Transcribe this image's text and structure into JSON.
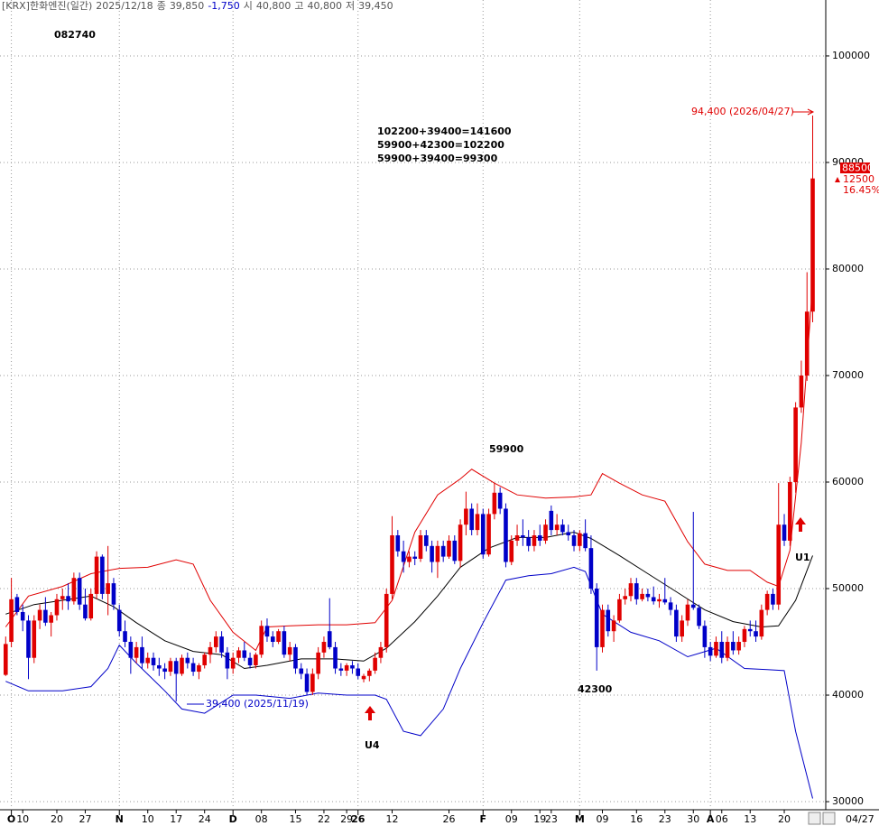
{
  "chart_data": {
    "type": "candlestick",
    "header": {
      "title": "[KRX]한화엔진(일간)",
      "date": "2025/12/18",
      "close_label": "종",
      "close": "39,850",
      "change": "-1,750",
      "open_label": "시",
      "open": "40,800",
      "high_label": "고",
      "high": "40,800",
      "low_label": "저",
      "low": "39,450"
    },
    "code": "082740",
    "notes": [
      "102200+39400=141600",
      "59900+42300=102200",
      "59900+39400=99300"
    ],
    "peak_label": "59900",
    "trough_label": "42300",
    "signals": [
      "U4",
      "U1"
    ],
    "high_label": "94,400 (2026/04/27)",
    "low_label": "39,400 (2025/11/19)",
    "last_price": "88500",
    "change": "12500",
    "change_pct": "16.45%",
    "last_date": "04/27",
    "up_color": "#e00000",
    "down_color": "#0000c8",
    "open": [
      41900,
      45000,
      49200,
      47800,
      47000,
      43500,
      47000,
      48000,
      46800,
      47500,
      49000,
      49300,
      48800,
      51000,
      48500,
      47200,
      49500,
      53000,
      49500,
      50500,
      48000,
      46000,
      45000,
      43500,
      44500,
      43000,
      43500,
      42800,
      42500,
      42200,
      43200,
      42000,
      43500,
      43000,
      42200,
      42800,
      43800,
      44500,
      45500,
      44000,
      42500,
      43500,
      44200,
      43500,
      42800,
      43800,
      46500,
      45500,
      45000,
      46000,
      43800,
      44500,
      42500,
      42000,
      40300,
      42000,
      44000,
      46000,
      44500,
      42500,
      42300,
      42800,
      42500,
      41500,
      41800,
      42300,
      43500,
      44500,
      49500,
      55000,
      53500,
      52500,
      53000,
      52800,
      55000,
      54000,
      52500,
      54000,
      53000,
      54500,
      52600,
      56000,
      57500,
      55500,
      57000,
      53200,
      57000,
      59000,
      57500,
      52500,
      54500,
      55000,
      54800,
      54000,
      55000,
      54500,
      57300,
      55500,
      56000,
      55300,
      55000,
      54000,
      55200,
      53800,
      50000,
      44500,
      48000,
      46000,
      47000,
      49000,
      49300,
      50500,
      49000,
      49500,
      49200,
      48800,
      49000,
      48700,
      48000,
      45500,
      47000,
      48500,
      48200,
      46500,
      44500,
      43700,
      45000,
      43500,
      45000,
      44200,
      45000,
      46200,
      46000,
      45500,
      48000,
      49500,
      48500,
      56000,
      54500,
      60000,
      67000,
      70000,
      76000
    ],
    "high": [
      45500,
      51000,
      49500,
      48500,
      47500,
      47500,
      48500,
      49200,
      47800,
      49500,
      50000,
      50500,
      51500,
      51500,
      50000,
      50000,
      53500,
      53200,
      54000,
      51000,
      48500,
      47000,
      45500,
      45000,
      45500,
      44000,
      44000,
      43500,
      43000,
      43500,
      43500,
      43800,
      44000,
      43500,
      43000,
      44000,
      45000,
      46000,
      46000,
      44500,
      44000,
      44500,
      45000,
      44000,
      44000,
      47000,
      47200,
      46000,
      46200,
      46500,
      45000,
      44800,
      43000,
      42500,
      42500,
      44500,
      45500,
      49100,
      45000,
      43000,
      43000,
      43200,
      43000,
      42000,
      42500,
      44000,
      45000,
      50000,
      56800,
      55500,
      54500,
      53500,
      53500,
      55500,
      55500,
      54500,
      54500,
      54500,
      55000,
      55000,
      56500,
      59100,
      58000,
      58000,
      57500,
      57500,
      59900,
      59500,
      58000,
      55000,
      56000,
      56500,
      55500,
      55500,
      56000,
      56500,
      57800,
      57000,
      56500,
      56000,
      55500,
      55500,
      56500,
      55000,
      50500,
      48500,
      48500,
      47500,
      49500,
      50000,
      51000,
      51000,
      50000,
      50000,
      50200,
      49500,
      51000,
      49200,
      48500,
      47500,
      49000,
      57200,
      48500,
      47000,
      45000,
      45500,
      46000,
      45500,
      46000,
      45500,
      46500,
      47000,
      47000,
      48500,
      49800,
      50000,
      59900,
      57000,
      60500,
      67500,
      71400,
      79700,
      94400
    ],
    "low": [
      41800,
      44500,
      47500,
      46000,
      41500,
      43000,
      46200,
      46500,
      45500,
      47000,
      48000,
      48000,
      48500,
      48000,
      47000,
      47000,
      49000,
      49000,
      47500,
      48000,
      45500,
      44500,
      42000,
      43000,
      42500,
      42500,
      42300,
      41800,
      41500,
      41800,
      39400,
      41800,
      42500,
      41800,
      41500,
      42500,
      43000,
      44000,
      43500,
      41500,
      42000,
      43000,
      43200,
      42500,
      42500,
      43500,
      45000,
      44500,
      44800,
      43500,
      43200,
      42000,
      41500,
      40000,
      40000,
      41500,
      43500,
      44300,
      42000,
      41800,
      41800,
      42000,
      41500,
      41200,
      41300,
      42000,
      43000,
      44000,
      49000,
      53000,
      51500,
      52000,
      52200,
      52500,
      53500,
      51500,
      51000,
      52500,
      52800,
      52300,
      52000,
      55000,
      55000,
      55000,
      52800,
      53000,
      56500,
      57000,
      52000,
      52200,
      54000,
      54000,
      53500,
      53500,
      54000,
      54200,
      55000,
      55000,
      55000,
      54500,
      53500,
      53500,
      53500,
      49500,
      42300,
      44000,
      45500,
      45000,
      46800,
      48500,
      48800,
      48500,
      48800,
      48800,
      48500,
      48200,
      48500,
      47500,
      45000,
      45000,
      46500,
      48000,
      46200,
      43500,
      43200,
      43500,
      43000,
      43200,
      43800,
      43800,
      44500,
      45500,
      45000,
      45200,
      47500,
      48000,
      48000,
      54000,
      54000,
      59000,
      66500,
      69500,
      75000
    ],
    "close": [
      44800,
      49000,
      47800,
      47000,
      43500,
      47000,
      48000,
      46800,
      47500,
      49000,
      49300,
      48800,
      51000,
      48500,
      47200,
      49500,
      53000,
      49500,
      50500,
      48500,
      46000,
      45000,
      43500,
      44500,
      43000,
      43500,
      42800,
      42500,
      42200,
      43200,
      42000,
      43500,
      43000,
      42200,
      42800,
      43800,
      44500,
      45500,
      44000,
      42500,
      43500,
      44200,
      43500,
      42800,
      43800,
      46500,
      45500,
      45000,
      46000,
      43800,
      44500,
      42500,
      42000,
      40300,
      42000,
      44000,
      45000,
      44500,
      42500,
      42300,
      42800,
      42500,
      41800,
      41800,
      42300,
      43500,
      44500,
      49500,
      55000,
      53500,
      52500,
      53000,
      52800,
      55000,
      54000,
      52500,
      54000,
      53000,
      54500,
      52600,
      56000,
      57500,
      55500,
      57000,
      53200,
      57000,
      59000,
      57500,
      52500,
      54500,
      55000,
      54800,
      54000,
      55000,
      54500,
      56000,
      55500,
      56000,
      55300,
      55000,
      54000,
      55200,
      53800,
      50000,
      44500,
      48000,
      46000,
      47000,
      49000,
      49300,
      50500,
      49000,
      49500,
      49200,
      48800,
      49000,
      48700,
      48000,
      45500,
      47000,
      48500,
      48200,
      46500,
      44500,
      43700,
      45000,
      43500,
      45000,
      44200,
      45000,
      46200,
      46000,
      45500,
      48000,
      49500,
      48500,
      56000,
      54500,
      60000,
      67000,
      70000,
      76000,
      88500
    ],
    "series": [
      {
        "color": "#e00000",
        "x": [
          0,
          4,
          10,
          15,
          20,
          25,
          30,
          33,
          36,
          40,
          44,
          46,
          50,
          55,
          60,
          65,
          68,
          72,
          76,
          80,
          82,
          86,
          90,
          95,
          100,
          103,
          105,
          108,
          112,
          116,
          120,
          123,
          127,
          131,
          134,
          136,
          138,
          140,
          142
        ],
        "values": [
          46400,
          49300,
          50200,
          51400,
          51900,
          52000,
          52700,
          52300,
          48900,
          45900,
          44200,
          46400,
          46500,
          46600,
          46600,
          46800,
          48900,
          55300,
          58800,
          60300,
          61200,
          59900,
          58800,
          58500,
          58600,
          58800,
          60800,
          59900,
          58800,
          58200,
          54400,
          52300,
          51700,
          51700,
          50600,
          50200,
          53600,
          63700,
          78600
        ]
      },
      {
        "color": "#000000",
        "x": [
          0,
          5,
          10,
          15,
          19,
          23,
          28,
          33,
          38,
          42,
          46,
          52,
          58,
          63,
          67,
          72,
          76,
          80,
          85,
          90,
          95,
          100,
          103,
          108,
          113,
          118,
          123,
          128,
          133,
          136,
          139,
          142
        ],
        "values": [
          47600,
          48500,
          48900,
          49300,
          48300,
          46800,
          45100,
          44100,
          43800,
          42500,
          42800,
          43400,
          43400,
          43200,
          44400,
          46900,
          49300,
          52000,
          53800,
          54800,
          54800,
          55300,
          54700,
          53100,
          51400,
          49700,
          48000,
          46900,
          46400,
          46500,
          48900,
          53100
        ]
      },
      {
        "color": "#0000c8",
        "x": [
          0,
          4,
          10,
          15,
          18,
          20,
          23,
          28,
          31,
          35,
          40,
          44,
          50,
          55,
          60,
          65,
          67,
          70,
          73,
          77,
          80,
          84,
          88,
          92,
          96,
          100,
          102,
          105,
          110,
          115,
          120,
          125,
          130,
          134,
          137,
          139,
          142
        ],
        "values": [
          41300,
          40400,
          40400,
          40800,
          42500,
          44700,
          43000,
          40400,
          38700,
          38300,
          40000,
          40000,
          39700,
          40200,
          40000,
          40000,
          39600,
          36600,
          36200,
          38700,
          42500,
          46800,
          50800,
          51200,
          51400,
          52000,
          51600,
          47600,
          45900,
          45100,
          43600,
          44400,
          42500,
          42400,
          42300,
          36600,
          30300
        ]
      }
    ],
    "xlim": [
      -1,
      144.3
    ],
    "ylim": [
      29240,
      105250
    ],
    "xticks": [
      {
        "value": 3,
        "label": "10"
      },
      {
        "value": 9,
        "label": "20"
      },
      {
        "value": 14,
        "label": "27"
      },
      {
        "value": 25,
        "label": "10"
      },
      {
        "value": 30,
        "label": "17"
      },
      {
        "value": 35,
        "label": "24"
      },
      {
        "value": 45,
        "label": "08"
      },
      {
        "value": 51,
        "label": "15"
      },
      {
        "value": 56,
        "label": "22"
      },
      {
        "value": 60,
        "label": "29"
      },
      {
        "value": 68,
        "label": "12"
      },
      {
        "value": 78,
        "label": "26"
      },
      {
        "value": 89,
        "label": "09"
      },
      {
        "value": 94,
        "label": "19"
      },
      {
        "value": 96,
        "label": "23"
      },
      {
        "value": 105,
        "label": "09"
      },
      {
        "value": 111,
        "label": "16"
      },
      {
        "value": 116,
        "label": "23"
      },
      {
        "value": 121,
        "label": "30"
      },
      {
        "value": 126,
        "label": "06"
      },
      {
        "value": 131,
        "label": "13"
      },
      {
        "value": 137,
        "label": "20"
      }
    ],
    "xticks_major": [
      {
        "value": 1,
        "label": "O"
      },
      {
        "value": 20,
        "label": "N"
      },
      {
        "value": 40,
        "label": "D"
      },
      {
        "value": 62,
        "label": "26"
      },
      {
        "value": 84,
        "label": "F"
      },
      {
        "value": 101,
        "label": "M"
      },
      {
        "value": 124,
        "label": "A"
      }
    ],
    "yticks": [
      30000,
      40000,
      50000,
      60000,
      70000,
      80000,
      90000,
      100000
    ],
    "grid": true
  }
}
